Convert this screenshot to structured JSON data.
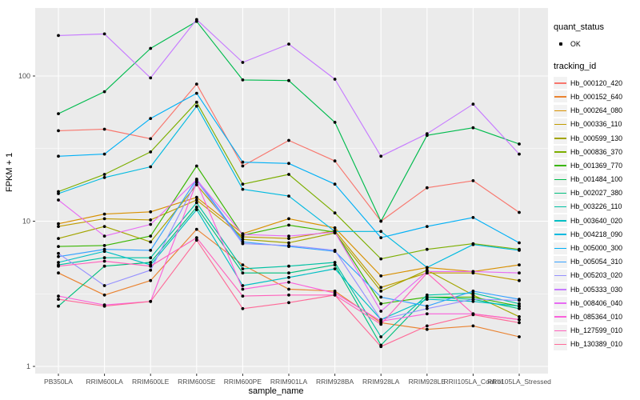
{
  "colors": {
    "panel_bg": "#EBEBEB",
    "grid": "#FFFFFF",
    "axis_text": "#4D4D4D",
    "tick_mark": "#333333",
    "point": "#000000",
    "legend_key_bg": "#F2F2F2"
  },
  "legend": {
    "quant_status_title": "quant_status",
    "quant_status_items": [
      {
        "label": "OK"
      }
    ],
    "tracking_title": "tracking_id"
  },
  "chart_data": {
    "type": "line",
    "title": "",
    "xlabel": "sample_name",
    "ylabel": "FPKM + 1",
    "y_scale": "log10",
    "y_ticks": [
      {
        "value": 1,
        "label": "1"
      },
      {
        "value": 10,
        "label": "10"
      },
      {
        "value": 100,
        "label": "100"
      }
    ],
    "y_minor_ticks": [
      3.162,
      31.62
    ],
    "ylim": [
      0.9,
      294
    ],
    "grid": "on",
    "legend_position": "right",
    "point_shape": "filled-black-dot (quant_status = OK)",
    "x_categories": [
      "PB350LA",
      "RRIM600LA",
      "RRIM600LE",
      "RRIM600SE",
      "RRIM600PE",
      "RRIM901LA",
      "RRIM928BA",
      "RRIM928LA",
      "RRIM928LE",
      "RRII105LA_Control",
      "RRII105LA_Stressed"
    ],
    "series": [
      {
        "name": "Hb_000120_420",
        "color": "#F8766D",
        "values": [
          42,
          43,
          37,
          88,
          24,
          36,
          26,
          10,
          17,
          19,
          11.5
        ]
      },
      {
        "name": "Hb_000152_640",
        "color": "#EA8331",
        "values": [
          4.4,
          3.1,
          3.9,
          8.8,
          5.0,
          3.4,
          3.3,
          2.0,
          1.8,
          1.9,
          1.6
        ]
      },
      {
        "name": "Hb_000264_080",
        "color": "#D89000",
        "values": [
          9.6,
          11.2,
          11.6,
          14.6,
          8.2,
          10.4,
          9.0,
          4.2,
          4.8,
          4.5,
          5.0
        ]
      },
      {
        "name": "Hb_000336_110",
        "color": "#C09B00",
        "values": [
          9.2,
          10.4,
          10.2,
          14.0,
          7.8,
          7.6,
          8.6,
          3.5,
          4.4,
          4.4,
          3.9
        ]
      },
      {
        "name": "Hb_000599_130",
        "color": "#A3A500",
        "values": [
          7.6,
          9.2,
          7.2,
          17.8,
          7.5,
          7.1,
          8.3,
          3.3,
          4.6,
          3.1,
          2.2
        ]
      },
      {
        "name": "Hb_000836_370",
        "color": "#7CAE00",
        "values": [
          16,
          21,
          30,
          66,
          18,
          21,
          11.4,
          5.5,
          6.4,
          7.0,
          6.4
        ]
      },
      {
        "name": "Hb_001369_770",
        "color": "#39B600",
        "values": [
          6.7,
          6.8,
          7.9,
          24,
          8.0,
          9.4,
          8.4,
          2.7,
          3.0,
          3.0,
          2.6
        ]
      },
      {
        "name": "Hb_001484_100",
        "color": "#00BB4E",
        "values": [
          55,
          78,
          155,
          238,
          94,
          93,
          48,
          10,
          39,
          44,
          34
        ]
      },
      {
        "name": "Hb_002027_380",
        "color": "#00BF7D",
        "values": [
          2.6,
          4.9,
          5.2,
          12.5,
          4.4,
          4.4,
          5.0,
          1.4,
          3.0,
          2.9,
          2.5
        ]
      },
      {
        "name": "Hb_003226_110",
        "color": "#00C1A3",
        "values": [
          5.0,
          5.6,
          5.6,
          13.4,
          4.7,
          4.9,
          5.2,
          1.6,
          3.1,
          3.2,
          2.7
        ]
      },
      {
        "name": "Hb_003640_020",
        "color": "#00BFC4",
        "values": [
          5.2,
          6.2,
          5.0,
          12.0,
          3.6,
          4.1,
          4.7,
          2.1,
          2.9,
          2.8,
          2.6
        ]
      },
      {
        "name": "Hb_004218_090",
        "color": "#00BAE0",
        "values": [
          15.5,
          20,
          23.7,
          62,
          16.6,
          14.9,
          8.5,
          8.5,
          4.8,
          6.9,
          6.3
        ]
      },
      {
        "name": "Hb_005000_300",
        "color": "#00B0F6",
        "values": [
          28,
          29,
          51,
          76,
          25.5,
          25,
          18,
          7.7,
          9.2,
          10.6,
          7.1
        ]
      },
      {
        "name": "Hb_005054_310",
        "color": "#35A2FF",
        "values": [
          5.7,
          6.4,
          6.3,
          19.5,
          7.2,
          6.7,
          6.2,
          3.0,
          2.6,
          3.3,
          2.9
        ]
      },
      {
        "name": "Hb_005203_020",
        "color": "#9590FF",
        "values": [
          6.0,
          3.6,
          4.6,
          19.0,
          7.0,
          6.8,
          6.3,
          2.1,
          2.5,
          2.9,
          2.85
        ]
      },
      {
        "name": "Hb_005333_030",
        "color": "#C77CFF",
        "values": [
          190,
          195,
          97,
          245,
          124,
          166,
          95,
          28,
          40,
          64,
          29
        ]
      },
      {
        "name": "Hb_008406_040",
        "color": "#E76BF3",
        "values": [
          14,
          7.9,
          9.5,
          19.3,
          8.1,
          7.9,
          8.4,
          2.4,
          4.5,
          4.5,
          4.4
        ]
      },
      {
        "name": "Hb_085364_010",
        "color": "#FA62DB",
        "values": [
          3.05,
          2.65,
          2.8,
          18.5,
          3.4,
          3.8,
          3.2,
          2.05,
          2.3,
          2.3,
          2.1
        ]
      },
      {
        "name": "Hb_127599_010",
        "color": "#FF62BC",
        "values": [
          4.9,
          5.3,
          4.9,
          7.7,
          3.05,
          3.1,
          3.1,
          1.95,
          4.4,
          2.3,
          2.1
        ]
      },
      {
        "name": "Hb_130389_010",
        "color": "#FF6A98",
        "values": [
          2.9,
          2.6,
          2.8,
          7.4,
          2.5,
          2.75,
          3.1,
          1.37,
          1.9,
          2.27,
          2.0
        ]
      }
    ]
  }
}
